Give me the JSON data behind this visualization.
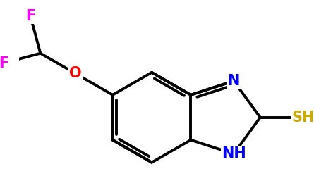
{
  "bg_color": "#ffffff",
  "bond_color": "#000000",
  "bond_width": 2.8,
  "atom_colors": {
    "F": "#ff00ff",
    "O": "#ff0000",
    "N": "#0000ff",
    "S": "#ccaa00",
    "H": "#000000",
    "C": "#000000"
  },
  "font_size": 15
}
